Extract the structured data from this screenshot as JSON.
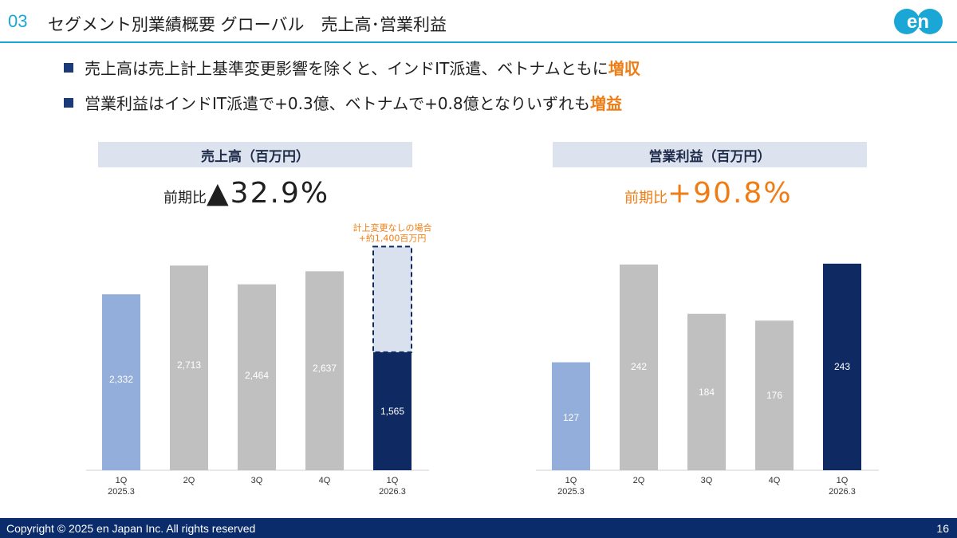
{
  "header": {
    "section_number": "03",
    "title": "セグメント別業績概要 グローバル　売上高･営業利益",
    "logo_text": "en"
  },
  "bullets": [
    {
      "text": "売上高は売上計上基準変更影響を除くと、インドIT派遣、ベトナムともに",
      "highlight": "増収"
    },
    {
      "text": "営業利益はインドIT派遣で+0.3億、ベトナムで+0.8億となりいずれも",
      "highlight": "増益"
    }
  ],
  "sales_panel": {
    "title": "売上高（百万円）",
    "yoy_label": "前期比",
    "yoy_value": "▲32.9%",
    "annotation_line1": "計上変更なしの場合",
    "annotation_line2": "+約1,400百万円"
  },
  "profit_panel": {
    "title": "営業利益（百万円）",
    "yoy_label": "前期比",
    "yoy_value": "+90.8%"
  },
  "colors": {
    "prior_year": "#94aedb",
    "quarters": "#c0c0c0",
    "current": "#0f2a63",
    "adjustment_fill": "#d9e1ee",
    "accent_orange": "#f07c14"
  },
  "chart_data": [
    {
      "type": "bar",
      "title": "売上高（百万円）",
      "categories": [
        "1Q\n2025.3",
        "2Q",
        "3Q",
        "4Q",
        "1Q\n2026.3"
      ],
      "values": [
        2332,
        2713,
        2464,
        2637,
        1565
      ],
      "data_labels": [
        "2,332",
        "2,713",
        "2,464",
        "2,637",
        "1,565"
      ],
      "stacked_extra": {
        "category_index": 4,
        "value": 1400,
        "style": "dashed-outline",
        "label": "計上変更なしの場合 +約1,400百万円"
      },
      "ylim": [
        0,
        3000
      ]
    },
    {
      "type": "bar",
      "title": "営業利益（百万円）",
      "categories": [
        "1Q\n2025.3",
        "2Q",
        "3Q",
        "4Q",
        "1Q\n2026.3"
      ],
      "values": [
        127,
        242,
        184,
        176,
        243
      ],
      "data_labels": [
        "127",
        "242",
        "184",
        "176",
        "243"
      ],
      "ylim": [
        0,
        270
      ]
    }
  ],
  "footer": {
    "copyright": "Copyright © 2025 en Japan Inc. All rights reserved",
    "page_number": "16"
  }
}
